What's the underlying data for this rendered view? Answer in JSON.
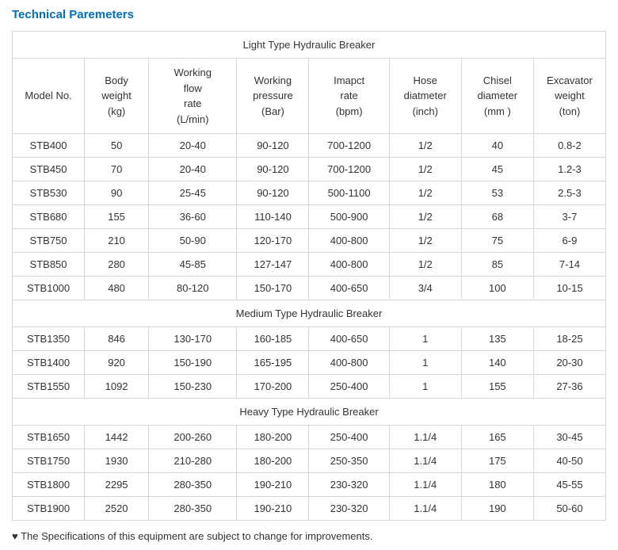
{
  "title": "Technical Paremeters",
  "colors": {
    "title": "#006dba",
    "border": "#d8d8d8",
    "text": "#333333",
    "background": "#ffffff"
  },
  "typography": {
    "title_fontsize": 15,
    "cell_fontsize": 13,
    "font_family": "Arial"
  },
  "columns": [
    {
      "key": "model",
      "label": "Model No."
    },
    {
      "key": "body",
      "label": "Body weight (kg)"
    },
    {
      "key": "flow",
      "label": "Working flow rate (L/min)"
    },
    {
      "key": "press",
      "label": "Working pressure (Bar)"
    },
    {
      "key": "impact",
      "label": "Imapct rate (bpm)"
    },
    {
      "key": "hose",
      "label": "Hose diatmeter (inch)"
    },
    {
      "key": "chisel",
      "label": "Chisel diameter (mm )"
    },
    {
      "key": "exc",
      "label": "Excavator weight (ton)"
    }
  ],
  "sections": [
    {
      "label": "Light Type Hydraulic Breaker",
      "rows": [
        {
          "model": "STB400",
          "body": "50",
          "flow": "20-40",
          "press": "90-120",
          "impact": "700-1200",
          "hose": "1/2",
          "chisel": "40",
          "exc": "0.8-2"
        },
        {
          "model": "STB450",
          "body": "70",
          "flow": "20-40",
          "press": "90-120",
          "impact": "700-1200",
          "hose": "1/2",
          "chisel": "45",
          "exc": "1.2-3"
        },
        {
          "model": "STB530",
          "body": "90",
          "flow": "25-45",
          "press": "90-120",
          "impact": "500-1100",
          "hose": "1/2",
          "chisel": "53",
          "exc": "2.5-3"
        },
        {
          "model": "STB680",
          "body": "155",
          "flow": "36-60",
          "press": "110-140",
          "impact": "500-900",
          "hose": "1/2",
          "chisel": "68",
          "exc": "3-7"
        },
        {
          "model": "STB750",
          "body": "210",
          "flow": "50-90",
          "press": "120-170",
          "impact": "400-800",
          "hose": "1/2",
          "chisel": "75",
          "exc": "6-9"
        },
        {
          "model": "STB850",
          "body": "280",
          "flow": "45-85",
          "press": "127-147",
          "impact": "400-800",
          "hose": "1/2",
          "chisel": "85",
          "exc": "7-14"
        },
        {
          "model": "STB1000",
          "body": "480",
          "flow": "80-120",
          "press": "150-170",
          "impact": "400-650",
          "hose": "3/4",
          "chisel": "100",
          "exc": "10-15"
        }
      ]
    },
    {
      "label": "Medium Type Hydraulic Breaker",
      "rows": [
        {
          "model": "STB1350",
          "body": "846",
          "flow": "130-170",
          "press": "160-185",
          "impact": "400-650",
          "hose": "1",
          "chisel": "135",
          "exc": "18-25"
        },
        {
          "model": "STB1400",
          "body": "920",
          "flow": "150-190",
          "press": "165-195",
          "impact": "400-800",
          "hose": "1",
          "chisel": "140",
          "exc": "20-30"
        },
        {
          "model": "STB1550",
          "body": "1092",
          "flow": "150-230",
          "press": "170-200",
          "impact": "250-400",
          "hose": "1",
          "chisel": "155",
          "exc": "27-36"
        }
      ]
    },
    {
      "label": "Heavy Type Hydraulic Breaker",
      "rows": [
        {
          "model": "STB1650",
          "body": "1442",
          "flow": "200-260",
          "press": "180-200",
          "impact": "250-400",
          "hose": "1.1/4",
          "chisel": "165",
          "exc": "30-45"
        },
        {
          "model": "STB1750",
          "body": "1930",
          "flow": "210-280",
          "press": "180-200",
          "impact": "250-350",
          "hose": "1.1/4",
          "chisel": "175",
          "exc": "40-50"
        },
        {
          "model": "STB1800",
          "body": "2295",
          "flow": "280-350",
          "press": "190-210",
          "impact": "230-320",
          "hose": "1.1/4",
          "chisel": "180",
          "exc": "45-55"
        },
        {
          "model": "STB1900",
          "body": "2520",
          "flow": "280-350",
          "press": "190-210",
          "impact": "230-320",
          "hose": "1.1/4",
          "chisel": "190",
          "exc": "50-60"
        }
      ]
    }
  ],
  "footnote": "♥ The Specifications of this equipment are subject to change for improvements."
}
